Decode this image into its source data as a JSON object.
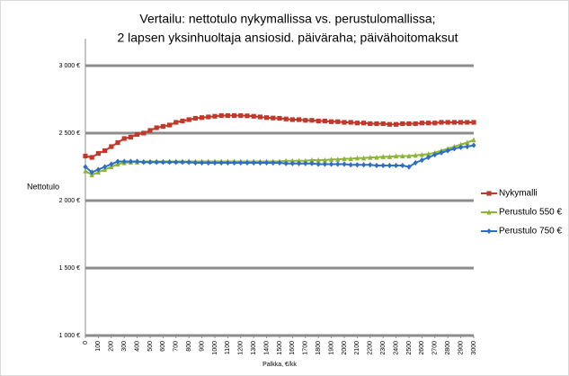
{
  "chart_data": {
    "type": "line",
    "title": [
      "Vertailu: nettotulo nykymallissa vs. perustulomallissa;",
      "2 lapsen yksinhuoltaja ansiosid. päiväraha; päivähoitomaksut"
    ],
    "x_label": "Palkka, €/kk",
    "y_label": "Nettotulo",
    "x": [
      0,
      50,
      100,
      150,
      200,
      250,
      300,
      350,
      400,
      450,
      500,
      550,
      600,
      650,
      700,
      750,
      800,
      850,
      900,
      950,
      1000,
      1050,
      1100,
      1150,
      1200,
      1250,
      1300,
      1350,
      1400,
      1450,
      1500,
      1550,
      1600,
      1650,
      1700,
      1750,
      1800,
      1850,
      1900,
      1950,
      2000,
      2050,
      2100,
      2150,
      2200,
      2250,
      2300,
      2350,
      2400,
      2450,
      2500,
      2550,
      2600,
      2650,
      2700,
      2750,
      2800,
      2850,
      2900,
      2950,
      3000
    ],
    "xlim": [
      0,
      3000
    ],
    "xticks": [
      0,
      100,
      200,
      300,
      400,
      500,
      600,
      700,
      800,
      900,
      1000,
      1100,
      1200,
      1300,
      1400,
      1500,
      1600,
      1700,
      1800,
      1900,
      2000,
      2100,
      2200,
      2300,
      2400,
      2500,
      2600,
      2700,
      2800,
      2900,
      3000
    ],
    "ylim": [
      1000,
      3000
    ],
    "yticks": [
      {
        "value": 1000,
        "label": "1 000 €"
      },
      {
        "value": 1500,
        "label": "1 500 €"
      },
      {
        "value": 2000,
        "label": "2 000 €"
      },
      {
        "value": 2500,
        "label": "2 500 €"
      },
      {
        "value": 3000,
        "label": "3 000 €"
      }
    ],
    "grid": true,
    "legend": "right",
    "series": [
      {
        "name": "Nykymalli",
        "color": "#c0392b",
        "marker": "square",
        "values": [
          2330,
          2320,
          2350,
          2370,
          2400,
          2430,
          2460,
          2470,
          2490,
          2500,
          2520,
          2540,
          2550,
          2560,
          2580,
          2590,
          2600,
          2610,
          2615,
          2620,
          2625,
          2630,
          2630,
          2630,
          2630,
          2628,
          2625,
          2620,
          2615,
          2612,
          2610,
          2605,
          2600,
          2600,
          2595,
          2595,
          2590,
          2590,
          2585,
          2585,
          2580,
          2580,
          2575,
          2575,
          2570,
          2570,
          2570,
          2565,
          2565,
          2570,
          2570,
          2570,
          2575,
          2575,
          2575,
          2580,
          2580,
          2580,
          2580,
          2580,
          2580
        ]
      },
      {
        "name": "Perustulo 550 €",
        "color": "#8fb43a",
        "marker": "triangle",
        "values": [
          2220,
          2190,
          2210,
          2230,
          2250,
          2270,
          2280,
          2285,
          2285,
          2290,
          2290,
          2290,
          2290,
          2290,
          2290,
          2290,
          2290,
          2290,
          2290,
          2290,
          2290,
          2290,
          2290,
          2290,
          2290,
          2290,
          2290,
          2290,
          2290,
          2290,
          2290,
          2295,
          2295,
          2295,
          2295,
          2300,
          2300,
          2300,
          2305,
          2305,
          2310,
          2310,
          2315,
          2315,
          2320,
          2320,
          2325,
          2325,
          2330,
          2330,
          2330,
          2335,
          2340,
          2345,
          2355,
          2370,
          2385,
          2400,
          2415,
          2430,
          2450
        ]
      },
      {
        "name": "Perustulo 750 €",
        "color": "#2e6fbf",
        "marker": "diamond",
        "values": [
          2250,
          2210,
          2230,
          2250,
          2270,
          2290,
          2290,
          2290,
          2290,
          2285,
          2285,
          2285,
          2285,
          2285,
          2285,
          2285,
          2285,
          2280,
          2280,
          2280,
          2280,
          2280,
          2280,
          2280,
          2280,
          2280,
          2280,
          2280,
          2280,
          2280,
          2280,
          2275,
          2275,
          2275,
          2275,
          2275,
          2270,
          2270,
          2270,
          2270,
          2270,
          2265,
          2265,
          2265,
          2265,
          2260,
          2260,
          2260,
          2260,
          2260,
          2250,
          2280,
          2300,
          2320,
          2340,
          2355,
          2370,
          2385,
          2395,
          2400,
          2410
        ]
      }
    ]
  }
}
